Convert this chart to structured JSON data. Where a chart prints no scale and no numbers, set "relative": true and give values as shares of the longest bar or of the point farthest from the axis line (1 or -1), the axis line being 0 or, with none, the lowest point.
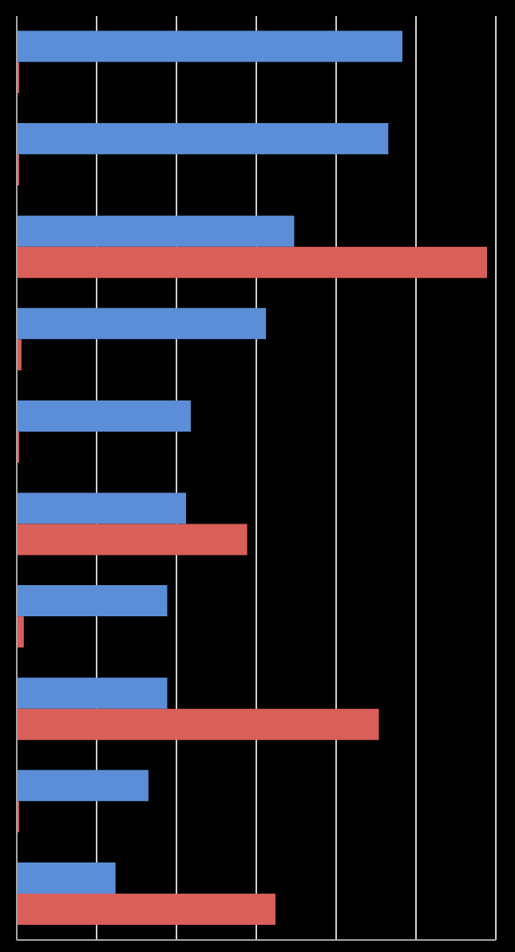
{
  "chart_data": {
    "type": "bar",
    "orientation": "horizontal",
    "relative": true,
    "categories": [
      null,
      null,
      null,
      null,
      null,
      null,
      null,
      null,
      null,
      null
    ],
    "series": [
      {
        "color": "#5b8ed6",
        "values": [
          0.82,
          0.79,
          0.59,
          0.53,
          0.37,
          0.36,
          0.32,
          0.32,
          0.28,
          0.21
        ]
      },
      {
        "color": "#d95f5b",
        "values": [
          0.005,
          0.005,
          1,
          0.01,
          0.005,
          0.49,
          0.015,
          0.77,
          0.005,
          0.55
        ]
      }
    ],
    "grid": "x",
    "tick_labels": false
  }
}
